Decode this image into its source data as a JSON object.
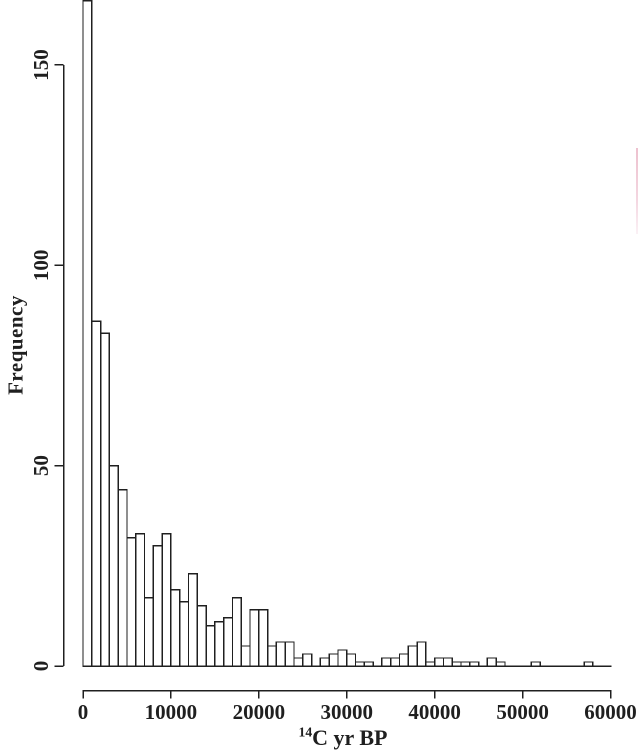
{
  "figure": {
    "background": "#ffffff",
    "ink_color": "#1f1f1f",
    "artifact_color": "#eab6c6"
  },
  "chart_data": {
    "type": "bar",
    "subtype": "histogram",
    "title": "",
    "xlabel": "¹⁴C yr BP",
    "xlabel_sup": "14",
    "xlabel_main": "C yr BP",
    "ylabel": "Frequency",
    "bin_start": 0,
    "bin_width": 1000,
    "frequencies": [
      166,
      86,
      83,
      50,
      44,
      32,
      33,
      17,
      30,
      33,
      19,
      16,
      23,
      15,
      10,
      11,
      12,
      17,
      5,
      14,
      14,
      5,
      6,
      6,
      2,
      3,
      0,
      2,
      3,
      4,
      3,
      1,
      1,
      0,
      2,
      2,
      3,
      5,
      6,
      1,
      2,
      2,
      1,
      1,
      1,
      0,
      2,
      1,
      0,
      0,
      0,
      1,
      0,
      0,
      0,
      0,
      0,
      1
    ],
    "x_ticks": [
      0,
      10000,
      20000,
      30000,
      40000,
      50000,
      60000
    ],
    "x_tick_labels": [
      "0",
      "10000",
      "20000",
      "30000",
      "40000",
      "50000",
      "60000"
    ],
    "y_ticks": [
      0,
      50,
      100,
      150
    ],
    "y_tick_labels": [
      "0",
      "50",
      "100",
      "150"
    ],
    "xlim": [
      0,
      60000
    ],
    "ylim": [
      0,
      166
    ],
    "bar_fill": "#ffffff",
    "bar_stroke": "#1f1f1f",
    "grid": false,
    "legend": null
  }
}
